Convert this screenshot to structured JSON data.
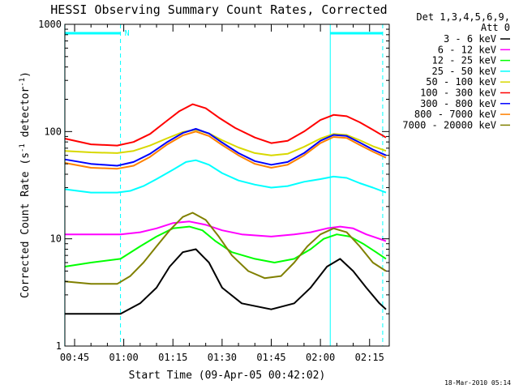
{
  "chart_data": {
    "type": "line",
    "title": "HESSI Observing Summary Count Rates, Corrected",
    "xlabel": "Start Time (09-Apr-05 00:42:02)",
    "ylabel_main": "Corrected Count Rate (s",
    "ylabel_sup1": "-1",
    "ylabel_mid": " detector",
    "ylabel_sup2": "-1",
    "ylabel_end": ")",
    "yscale": "log",
    "ylim": [
      1,
      1000
    ],
    "xlim": [
      "00:42:02",
      "02:21:00"
    ],
    "x_ticks": [
      "00:45",
      "01:00",
      "01:15",
      "01:30",
      "01:45",
      "02:00",
      "02:15"
    ],
    "y_ticks": [
      "1",
      "10",
      "100",
      "1000"
    ],
    "legend_header": [
      "Det 1,3,4,5,6,9,",
      "Att 0"
    ],
    "legend_position": "right",
    "timestamp": "18-Mar-2010 05:14",
    "series": [
      {
        "name": "3 - 6 keV",
        "color": "#000000",
        "points": [
          [
            "00:42",
            2.0
          ],
          [
            "00:52",
            2.0
          ],
          [
            "00:59",
            2.0
          ],
          [
            "01:05",
            2.5
          ],
          [
            "01:10",
            3.5
          ],
          [
            "01:14",
            5.5
          ],
          [
            "01:18",
            7.5
          ],
          [
            "01:22",
            8.0
          ],
          [
            "01:26",
            6.0
          ],
          [
            "01:30",
            3.5
          ],
          [
            "01:36",
            2.5
          ],
          [
            "01:45",
            2.2
          ],
          [
            "01:52",
            2.5
          ],
          [
            "01:57",
            3.5
          ],
          [
            "02:02",
            5.5
          ],
          [
            "02:06",
            6.5
          ],
          [
            "02:10",
            5.0
          ],
          [
            "02:14",
            3.5
          ],
          [
            "02:18",
            2.5
          ],
          [
            "02:20",
            2.2
          ]
        ]
      },
      {
        "name": "6 - 12 keV",
        "color": "#ff00ff",
        "points": [
          [
            "00:42",
            11
          ],
          [
            "00:50",
            11
          ],
          [
            "00:59",
            11
          ],
          [
            "01:05",
            11.5
          ],
          [
            "01:10",
            12.5
          ],
          [
            "01:15",
            14
          ],
          [
            "01:20",
            14.5
          ],
          [
            "01:25",
            13.5
          ],
          [
            "01:30",
            12
          ],
          [
            "01:36",
            11
          ],
          [
            "01:45",
            10.5
          ],
          [
            "01:52",
            11
          ],
          [
            "01:57",
            11.5
          ],
          [
            "02:02",
            12.5
          ],
          [
            "02:06",
            13
          ],
          [
            "02:10",
            12.5
          ],
          [
            "02:14",
            11
          ],
          [
            "02:18",
            10
          ],
          [
            "02:20",
            9.5
          ]
        ]
      },
      {
        "name": "12 - 25 keV",
        "color": "#00ff00",
        "points": [
          [
            "00:42",
            5.5
          ],
          [
            "00:50",
            6.0
          ],
          [
            "00:59",
            6.5
          ],
          [
            "01:05",
            8.5
          ],
          [
            "01:10",
            10.5
          ],
          [
            "01:15",
            12.5
          ],
          [
            "01:20",
            13
          ],
          [
            "01:24",
            12
          ],
          [
            "01:28",
            9.5
          ],
          [
            "01:33",
            7.5
          ],
          [
            "01:40",
            6.5
          ],
          [
            "01:46",
            6.0
          ],
          [
            "01:52",
            6.5
          ],
          [
            "01:57",
            8.0
          ],
          [
            "02:01",
            10
          ],
          [
            "02:05",
            11
          ],
          [
            "02:09",
            10.5
          ],
          [
            "02:13",
            9.0
          ],
          [
            "02:17",
            7.5
          ],
          [
            "02:20",
            6.5
          ]
        ]
      },
      {
        "name": "25 - 50 keV",
        "color": "#00ffff",
        "points": [
          [
            "00:42",
            29
          ],
          [
            "00:50",
            27
          ],
          [
            "00:58",
            27
          ],
          [
            "01:02",
            28
          ],
          [
            "01:06",
            31
          ],
          [
            "01:10",
            36
          ],
          [
            "01:15",
            44
          ],
          [
            "01:19",
            52
          ],
          [
            "01:22",
            54
          ],
          [
            "01:26",
            49
          ],
          [
            "01:30",
            41
          ],
          [
            "01:35",
            35
          ],
          [
            "01:40",
            32
          ],
          [
            "01:45",
            30
          ],
          [
            "01:50",
            31
          ],
          [
            "01:55",
            34
          ],
          [
            "02:00",
            36
          ],
          [
            "02:04",
            38
          ],
          [
            "02:08",
            37
          ],
          [
            "02:12",
            33
          ],
          [
            "02:16",
            30
          ],
          [
            "02:20",
            27
          ]
        ]
      },
      {
        "name": "50 - 100 keV",
        "color": "#d8d800",
        "points": [
          [
            "00:42",
            66
          ],
          [
            "00:50",
            64
          ],
          [
            "00:58",
            63
          ],
          [
            "01:03",
            66
          ],
          [
            "01:08",
            74
          ],
          [
            "01:13",
            86
          ],
          [
            "01:18",
            99
          ],
          [
            "01:22",
            104
          ],
          [
            "01:26",
            96
          ],
          [
            "01:30",
            83
          ],
          [
            "01:35",
            71
          ],
          [
            "01:40",
            63
          ],
          [
            "01:45",
            60
          ],
          [
            "01:50",
            62
          ],
          [
            "01:55",
            72
          ],
          [
            "02:00",
            86
          ],
          [
            "02:04",
            95
          ],
          [
            "02:08",
            93
          ],
          [
            "02:12",
            83
          ],
          [
            "02:16",
            73
          ],
          [
            "02:20",
            66
          ]
        ]
      },
      {
        "name": "100 - 300 keV",
        "color": "#ff0000",
        "points": [
          [
            "00:42",
            86
          ],
          [
            "00:50",
            76
          ],
          [
            "00:58",
            74
          ],
          [
            "01:03",
            80
          ],
          [
            "01:08",
            95
          ],
          [
            "01:13",
            125
          ],
          [
            "01:17",
            155
          ],
          [
            "01:21",
            180
          ],
          [
            "01:25",
            165
          ],
          [
            "01:29",
            135
          ],
          [
            "01:34",
            108
          ],
          [
            "01:40",
            88
          ],
          [
            "01:45",
            78
          ],
          [
            "01:50",
            82
          ],
          [
            "01:55",
            100
          ],
          [
            "02:00",
            128
          ],
          [
            "02:04",
            143
          ],
          [
            "02:08",
            139
          ],
          [
            "02:12",
            122
          ],
          [
            "02:16",
            104
          ],
          [
            "02:20",
            88
          ]
        ]
      },
      {
        "name": "300 - 800 keV",
        "color": "#0000ff",
        "points": [
          [
            "00:42",
            55
          ],
          [
            "00:50",
            50
          ],
          [
            "00:58",
            48
          ],
          [
            "01:03",
            52
          ],
          [
            "01:08",
            62
          ],
          [
            "01:13",
            79
          ],
          [
            "01:18",
            97
          ],
          [
            "01:22",
            106
          ],
          [
            "01:26",
            96
          ],
          [
            "01:30",
            79
          ],
          [
            "01:35",
            63
          ],
          [
            "01:40",
            53
          ],
          [
            "01:45",
            49
          ],
          [
            "01:50",
            52
          ],
          [
            "01:55",
            63
          ],
          [
            "02:00",
            82
          ],
          [
            "02:04",
            93
          ],
          [
            "02:08",
            91
          ],
          [
            "02:12",
            79
          ],
          [
            "02:16",
            68
          ],
          [
            "02:20",
            60
          ]
        ]
      },
      {
        "name": "800 - 7000 keV",
        "color": "#ff8000",
        "points": [
          [
            "00:42",
            51
          ],
          [
            "00:50",
            46
          ],
          [
            "00:58",
            45
          ],
          [
            "01:03",
            48
          ],
          [
            "01:08",
            58
          ],
          [
            "01:13",
            75
          ],
          [
            "01:18",
            92
          ],
          [
            "01:22",
            100
          ],
          [
            "01:26",
            91
          ],
          [
            "01:30",
            75
          ],
          [
            "01:35",
            60
          ],
          [
            "01:40",
            50
          ],
          [
            "01:45",
            46
          ],
          [
            "01:50",
            49
          ],
          [
            "01:55",
            60
          ],
          [
            "02:00",
            78
          ],
          [
            "02:04",
            89
          ],
          [
            "02:08",
            87
          ],
          [
            "02:12",
            75
          ],
          [
            "02:16",
            65
          ],
          [
            "02:20",
            57
          ]
        ]
      },
      {
        "name": "7000 - 20000 keV",
        "color": "#808000",
        "points": [
          [
            "00:42",
            4.0
          ],
          [
            "00:50",
            3.8
          ],
          [
            "00:58",
            3.8
          ],
          [
            "01:02",
            4.5
          ],
          [
            "01:06",
            6.0
          ],
          [
            "01:10",
            8.5
          ],
          [
            "01:14",
            12
          ],
          [
            "01:18",
            16
          ],
          [
            "01:21",
            17.5
          ],
          [
            "01:25",
            15
          ],
          [
            "01:29",
            10.5
          ],
          [
            "01:33",
            7.0
          ],
          [
            "01:38",
            5.0
          ],
          [
            "01:43",
            4.3
          ],
          [
            "01:48",
            4.5
          ],
          [
            "01:52",
            6.0
          ],
          [
            "01:56",
            8.5
          ],
          [
            "02:00",
            11
          ],
          [
            "02:04",
            12.5
          ],
          [
            "02:08",
            11.5
          ],
          [
            "02:12",
            8.5
          ],
          [
            "02:16",
            6.0
          ],
          [
            "02:20",
            5.0
          ]
        ]
      }
    ],
    "observing_bars": [
      {
        "label": "N",
        "color": "#00ffff",
        "segments": [
          [
            "00:42",
            "00:59"
          ],
          [
            "02:03",
            "02:19"
          ]
        ]
      }
    ],
    "vertical_markers": [
      {
        "time": "00:42",
        "style": "solid",
        "color": "#00ffff"
      },
      {
        "time": "00:59",
        "style": "dashed",
        "color": "#00ffff"
      },
      {
        "time": "02:03",
        "style": "solid",
        "color": "#00ffff"
      },
      {
        "time": "02:19",
        "style": "dashed",
        "color": "#00ffff"
      }
    ]
  }
}
